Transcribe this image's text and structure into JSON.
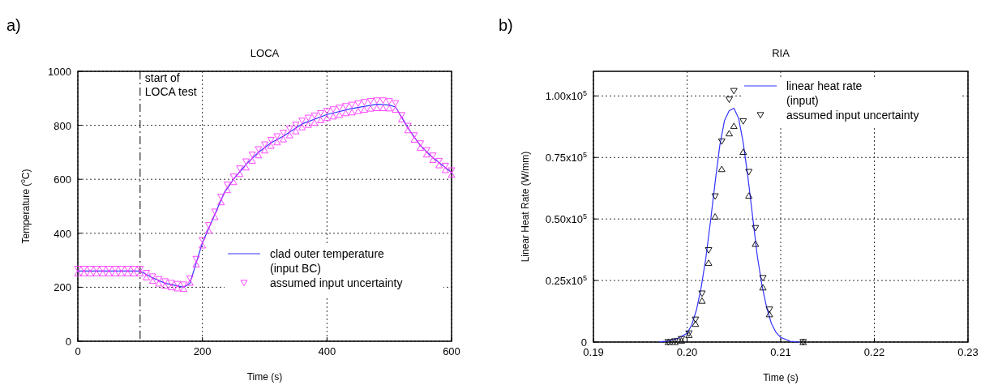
{
  "chart_data": [
    {
      "type": "line",
      "title": "LOCA",
      "xlabel": "Time (s)",
      "ylabel": "Temperature ($^{o}$C)",
      "annotations": [
        "a)",
        {
          "text": "start of\nLOCA test",
          "x": 100,
          "y": 960
        }
      ],
      "xlim": [
        0,
        600
      ],
      "xticks": [
        0,
        200,
        400,
        600
      ],
      "ylim": [
        0,
        1000
      ],
      "yticks": [
        0,
        200,
        400,
        600,
        800,
        1000
      ],
      "grid": true,
      "legend": "bottom right",
      "ref_lines": [
        {
          "axis": "x",
          "value": 100,
          "line_style": "dashed",
          "color": "#000000"
        }
      ],
      "series": [
        {
          "name": "clad outer temperature\n(input BC)",
          "color": "#3333ff",
          "marker": "none",
          "x": [
            0,
            100,
            120,
            140,
            170,
            180,
            200,
            220,
            235,
            250,
            270,
            290,
            310,
            330,
            360,
            400,
            440,
            480,
            500,
            510,
            530,
            550,
            570,
            600
          ],
          "values": [
            260,
            260,
            235,
            215,
            200,
            215,
            365,
            470,
            550,
            600,
            655,
            700,
            735,
            760,
            805,
            840,
            862,
            878,
            875,
            868,
            790,
            725,
            680,
            625
          ]
        },
        {
          "type": "scatter",
          "name": "assumed input uncertainty",
          "color": "#ff33ff",
          "marker": "triangle",
          "x": [
            0,
            10,
            20,
            30,
            40,
            50,
            60,
            70,
            80,
            90,
            100,
            110,
            120,
            130,
            140,
            150,
            160,
            170,
            180,
            190,
            200,
            210,
            220,
            230,
            240,
            250,
            260,
            270,
            280,
            290,
            300,
            310,
            320,
            330,
            340,
            350,
            360,
            370,
            380,
            390,
            400,
            410,
            420,
            430,
            440,
            450,
            460,
            470,
            480,
            490,
            500,
            510,
            520,
            530,
            540,
            550,
            560,
            570,
            580,
            590,
            600
          ],
          "values": [
            268,
            268,
            268,
            268,
            268,
            268,
            268,
            268,
            268,
            268,
            268,
            253,
            240,
            230,
            222,
            216,
            212,
            210,
            233,
            305,
            375,
            430,
            480,
            535,
            580,
            610,
            640,
            666,
            691,
            711,
            729,
            746,
            759,
            772,
            787,
            802,
            817,
            828,
            836,
            845,
            853,
            859,
            865,
            871,
            876,
            881,
            886,
            890,
            892,
            892,
            889,
            882,
            838,
            798,
            763,
            733,
            708,
            688,
            668,
            650,
            633
          ]
        },
        {
          "type": "scatter",
          "color": "#ff33ff",
          "marker": "triangle",
          "x": [
            0,
            10,
            20,
            30,
            40,
            50,
            60,
            70,
            80,
            90,
            100,
            110,
            120,
            130,
            140,
            150,
            160,
            170,
            180,
            190,
            200,
            210,
            220,
            230,
            240,
            250,
            260,
            270,
            280,
            290,
            300,
            310,
            320,
            330,
            340,
            350,
            360,
            370,
            380,
            390,
            400,
            410,
            420,
            430,
            440,
            450,
            460,
            470,
            480,
            490,
            500,
            510,
            520,
            530,
            540,
            550,
            560,
            570,
            580,
            590,
            600
          ],
          "values": [
            252,
            252,
            252,
            252,
            252,
            252,
            252,
            252,
            252,
            252,
            252,
            237,
            224,
            214,
            206,
            200,
            196,
            194,
            217,
            285,
            355,
            410,
            460,
            515,
            560,
            590,
            620,
            644,
            669,
            689,
            707,
            724,
            737,
            748,
            763,
            778,
            793,
            802,
            810,
            819,
            827,
            833,
            839,
            845,
            848,
            853,
            858,
            862,
            864,
            864,
            863,
            858,
            822,
            782,
            747,
            717,
            692,
            672,
            652,
            634,
            617
          ]
        }
      ]
    },
    {
      "type": "line",
      "title": "RIA",
      "xlabel": "Time (s)",
      "ylabel": "Linear Heat Rate (W/mm)",
      "annotations": [
        "b)"
      ],
      "xlim": [
        0.19,
        0.23
      ],
      "xticks": [
        0.19,
        {
          "value": 0.2,
          "label": "0.20"
        },
        0.21,
        0.22,
        0.23
      ],
      "ylim": [
        0,
        110000
      ],
      "yticks": [
        0,
        {
          "value": 25000,
          "label": "0.25x10$^{5}$"
        },
        {
          "value": 50000,
          "label": "0.50x10$^{5}$"
        },
        {
          "value": 75000,
          "label": "0.75x10$^{5}$"
        },
        {
          "value": 100000,
          "label": "1.00x10$^{5}$"
        }
      ],
      "grid": true,
      "legend": "top right",
      "series": [
        {
          "name": "linear heat rate\n(input)",
          "color": "#3333ff",
          "marker": "none",
          "x": [
            0.197,
            0.198,
            0.199,
            0.2,
            0.2005,
            0.201,
            0.2015,
            0.202,
            0.2025,
            0.203,
            0.2035,
            0.204,
            0.2045,
            0.205,
            0.2055,
            0.206,
            0.2065,
            0.207,
            0.2075,
            0.208,
            0.2085,
            0.209,
            0.2095,
            0.21,
            0.211,
            0.212
          ],
          "values": [
            100,
            400,
            1500,
            3500,
            7000,
            13000,
            22000,
            34000,
            49000,
            65000,
            80000,
            90000,
            94000,
            95000,
            91000,
            81000,
            67000,
            51000,
            35000,
            23000,
            14000,
            7600,
            3900,
            1900,
            300,
            0
          ]
        },
        {
          "type": "scatter",
          "name": "assumed input uncertainty",
          "color": "#000000",
          "marker": "triangle",
          "x": [
            0.198,
            0.1987,
            0.1994,
            0.2002,
            0.2009,
            0.2016,
            0.2023,
            0.203,
            0.2037,
            0.2045,
            0.205,
            0.206,
            0.2066,
            0.2073,
            0.2081,
            0.2088,
            0.2124
          ],
          "values": [
            0,
            300,
            1200,
            3500,
            9100,
            19700,
            37300,
            59200,
            81500,
            98500,
            102000,
            89700,
            69100,
            46300,
            26000,
            13200,
            0
          ]
        },
        {
          "type": "scatter",
          "color": "#000000",
          "marker": "triangle",
          "x": [
            0.198,
            0.1987,
            0.1994,
            0.2002,
            0.2009,
            0.2016,
            0.2023,
            0.203,
            0.2037,
            0.2045,
            0.205,
            0.206,
            0.2066,
            0.2073,
            0.2081,
            0.2088,
            0.2124
          ],
          "values": [
            0,
            0,
            600,
            2900,
            7400,
            16800,
            32200,
            51000,
            70300,
            84800,
            87800,
            77300,
            59500,
            39900,
            22200,
            11300,
            0
          ]
        }
      ]
    }
  ]
}
